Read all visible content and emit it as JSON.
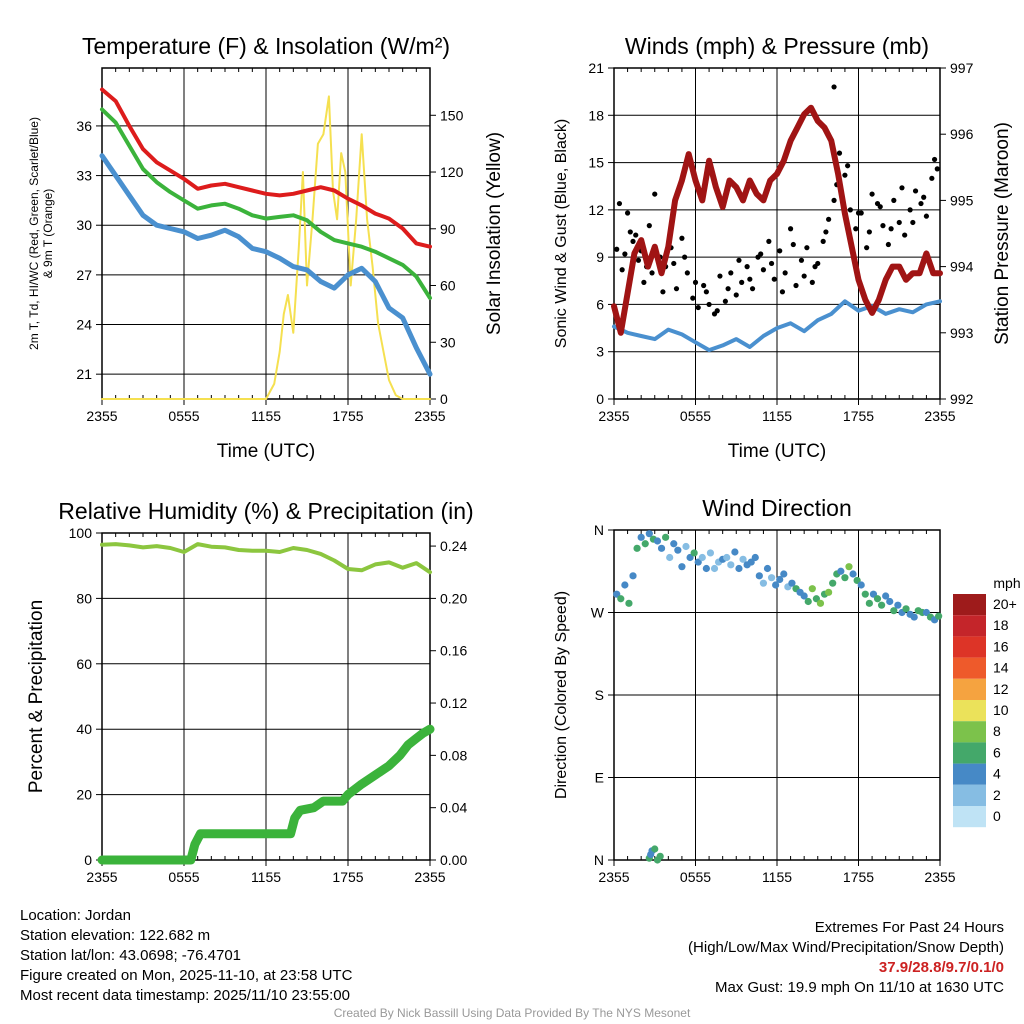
{
  "colors": {
    "red": "#dd1c1c",
    "green": "#3bb33b",
    "blue": "#4a90cf",
    "yellow": "#f5e050",
    "maroon": "#a01414",
    "black": "#000000",
    "lightgreen": "#8cc63f"
  },
  "time_ticks": [
    "2355",
    "0555",
    "1155",
    "1755",
    "2355"
  ],
  "chart_data": [
    {
      "id": "temp",
      "type": "line",
      "title": "Temperature (F) & Insolation (W/m²)",
      "xlabel": "Time (UTC)",
      "ylabel": "2m T, Td, HI/WC (Red, Green, Scarlet/Blue) & 9m T (Orange)",
      "y2label": "Solar Insolation (Yellow)",
      "xlim": [
        0,
        24
      ],
      "ylim": [
        19.5,
        39.5
      ],
      "y2lim": [
        0,
        175
      ],
      "yticks": [
        21,
        24,
        27,
        30,
        33,
        36
      ],
      "y2ticks": [
        0,
        30,
        60,
        90,
        120,
        150
      ],
      "series": [
        {
          "name": "2m T",
          "color": "red",
          "axis": "left",
          "width": 4,
          "x": [
            0,
            1,
            2,
            3,
            4,
            5,
            6,
            7,
            8,
            9,
            10,
            11,
            12,
            13,
            14,
            15,
            16,
            17,
            18,
            19,
            20,
            21,
            22,
            23,
            24
          ],
          "y": [
            38.2,
            37.5,
            36.0,
            34.6,
            33.8,
            33.3,
            32.8,
            32.2,
            32.4,
            32.5,
            32.3,
            32.1,
            31.9,
            31.8,
            31.9,
            32.1,
            32.3,
            32.1,
            31.6,
            31.2,
            30.7,
            30.4,
            29.8,
            28.9,
            28.7
          ]
        },
        {
          "name": "Td",
          "color": "green",
          "axis": "left",
          "width": 4,
          "x": [
            0,
            1,
            2,
            3,
            4,
            5,
            6,
            7,
            8,
            9,
            10,
            11,
            12,
            13,
            14,
            15,
            16,
            17,
            18,
            19,
            20,
            21,
            22,
            23,
            24
          ],
          "y": [
            37.0,
            36.2,
            34.8,
            33.4,
            32.6,
            32.0,
            31.5,
            31.0,
            31.2,
            31.3,
            31.0,
            30.6,
            30.4,
            30.5,
            30.6,
            30.3,
            29.6,
            29.1,
            28.9,
            28.7,
            28.4,
            28.0,
            27.6,
            26.9,
            25.6
          ]
        },
        {
          "name": "HI/WC",
          "color": "blue",
          "axis": "left",
          "width": 5,
          "x": [
            0,
            1,
            2,
            3,
            4,
            5,
            6,
            7,
            8,
            9,
            10,
            11,
            12,
            13,
            14,
            15,
            16,
            17,
            18,
            19,
            20,
            21,
            22,
            23,
            24
          ],
          "y": [
            34.2,
            33.0,
            31.8,
            30.6,
            30.0,
            29.8,
            29.6,
            29.2,
            29.4,
            29.7,
            29.3,
            28.6,
            28.4,
            28.0,
            27.5,
            27.3,
            26.6,
            26.2,
            27.0,
            27.4,
            26.6,
            25.0,
            24.4,
            22.6,
            21.0
          ]
        },
        {
          "name": "Solar Insolation",
          "color": "yellow",
          "axis": "right",
          "width": 2,
          "x": [
            0,
            12,
            12.6,
            13.0,
            13.3,
            13.6,
            14.0,
            14.4,
            14.7,
            15.0,
            15.4,
            15.8,
            16.2,
            16.6,
            16.9,
            17.2,
            17.5,
            17.8,
            18.2,
            18.6,
            19.0,
            19.4,
            19.8,
            20.2,
            20.6,
            21.0,
            21.5,
            22.0,
            24
          ],
          "y": [
            0,
            0,
            8,
            25,
            45,
            55,
            35,
            80,
            120,
            60,
            95,
            135,
            140,
            160,
            110,
            95,
            130,
            120,
            60,
            95,
            140,
            95,
            70,
            40,
            25,
            10,
            2,
            0,
            0
          ]
        }
      ]
    },
    {
      "id": "winds",
      "type": "line",
      "title": "Winds (mph) & Pressure (mb)",
      "xlabel": "Time (UTC)",
      "ylabel": "Sonic Wind & Gust (Blue, Black)",
      "y2label": "Station Pressure (Maroon)",
      "xlim": [
        0,
        24
      ],
      "ylim": [
        0,
        21
      ],
      "y2lim": [
        992,
        997
      ],
      "yticks": [
        0,
        3,
        6,
        9,
        12,
        15,
        18,
        21
      ],
      "y2ticks": [
        992,
        993,
        994,
        995,
        996,
        997
      ],
      "series": [
        {
          "name": "Sonic Wind",
          "color": "blue",
          "axis": "left",
          "width": 4,
          "x": [
            0,
            1,
            2,
            3,
            4,
            5,
            6,
            7,
            8,
            9,
            10,
            11,
            12,
            13,
            14,
            15,
            16,
            17,
            18,
            19,
            20,
            21,
            22,
            23,
            24
          ],
          "y": [
            4.6,
            4.2,
            4.0,
            3.8,
            4.4,
            4.1,
            3.6,
            3.1,
            3.4,
            3.8,
            3.3,
            4.0,
            4.5,
            4.8,
            4.3,
            5.0,
            5.4,
            6.2,
            5.6,
            5.9,
            5.4,
            5.7,
            5.5,
            6.0,
            6.2
          ]
        },
        {
          "name": "Station Pressure",
          "color": "maroon",
          "axis": "right",
          "width": 6,
          "x": [
            0,
            0.5,
            1,
            1.5,
            2,
            2.5,
            3,
            3.5,
            4,
            4.5,
            5,
            5.5,
            6,
            6.5,
            7,
            7.5,
            8,
            8.5,
            9,
            9.5,
            10,
            10.5,
            11,
            11.5,
            12,
            12.5,
            13,
            13.5,
            14,
            14.5,
            15,
            15.5,
            16,
            16.5,
            17,
            17.5,
            18,
            18.5,
            19,
            19.5,
            20,
            20.5,
            21,
            21.5,
            22,
            22.5,
            23,
            23.5,
            24
          ],
          "y": [
            993.4,
            993.0,
            993.6,
            994.2,
            994.4,
            994.0,
            994.3,
            993.9,
            994.3,
            995.0,
            995.3,
            995.7,
            995.3,
            995.0,
            995.6,
            995.2,
            994.9,
            995.3,
            995.2,
            995.0,
            995.3,
            995.1,
            995.0,
            995.3,
            995.4,
            995.6,
            995.9,
            996.1,
            996.3,
            996.4,
            996.2,
            996.1,
            995.9,
            995.4,
            994.8,
            994.3,
            993.8,
            993.5,
            993.3,
            993.5,
            993.8,
            994.0,
            994.0,
            993.8,
            993.9,
            993.9,
            994.2,
            993.9,
            993.9
          ]
        }
      ],
      "scatter": {
        "name": "Gust",
        "color": "black",
        "axis": "left",
        "x": [
          0.2,
          0.6,
          1.0,
          1.4,
          1.8,
          2.2,
          2.6,
          3.0,
          3.4,
          3.8,
          4.2,
          4.6,
          5.0,
          5.4,
          5.8,
          6.2,
          6.6,
          7.0,
          7.4,
          7.8,
          8.2,
          8.6,
          9.0,
          9.4,
          9.8,
          10.2,
          10.6,
          11.0,
          11.4,
          11.8,
          12.2,
          12.6,
          13.0,
          13.4,
          13.8,
          14.2,
          14.6,
          15.0,
          15.4,
          15.8,
          16.2,
          16.6,
          17.0,
          17.4,
          17.8,
          18.2,
          18.6,
          19.0,
          19.4,
          19.8,
          20.2,
          20.6,
          21.0,
          21.4,
          21.8,
          22.2,
          22.6,
          23.0,
          23.4,
          23.8,
          0.4,
          1.2,
          2.0,
          2.8,
          3.6,
          4.4,
          5.2,
          6.0,
          6.8,
          7.6,
          8.4,
          9.2,
          10.0,
          10.8,
          11.6,
          12.4,
          13.2,
          14.0,
          14.8,
          15.6,
          16.4,
          17.2,
          18.0,
          18.8,
          19.6,
          20.4,
          21.2,
          22.0,
          22.8,
          23.6,
          16.2,
          2.4,
          0.8,
          1.6
        ],
        "y": [
          9.5,
          8.2,
          11.8,
          10.0,
          8.8,
          7.4,
          11.0,
          13.0,
          9.0,
          8.4,
          9.6,
          7.0,
          10.2,
          8.0,
          6.4,
          5.8,
          7.2,
          6.0,
          5.4,
          7.8,
          6.2,
          8.0,
          6.6,
          7.4,
          8.4,
          7.0,
          9.0,
          8.2,
          10.0,
          7.6,
          9.4,
          8.0,
          10.8,
          7.2,
          8.8,
          9.6,
          7.4,
          8.6,
          10.0,
          11.4,
          12.6,
          15.6,
          14.2,
          12.0,
          10.8,
          11.8,
          9.6,
          13.0,
          12.4,
          11.0,
          9.8,
          12.6,
          11.2,
          10.4,
          12.0,
          13.2,
          12.4,
          11.6,
          14.0,
          14.6,
          12.4,
          10.6,
          9.4,
          8.0,
          6.8,
          8.6,
          9.0,
          7.4,
          6.8,
          5.6,
          7.0,
          8.8,
          7.6,
          9.2,
          8.6,
          6.8,
          9.8,
          7.8,
          8.4,
          10.6,
          13.6,
          14.8,
          11.8,
          10.6,
          12.2,
          10.8,
          13.4,
          11.2,
          12.8,
          15.2,
          19.8,
          8.4,
          9.2,
          10.4
        ]
      }
    },
    {
      "id": "rh",
      "type": "line",
      "title": "Relative Humidity (%) & Precipitation (in)",
      "xlabel": "",
      "ylabel": "Percent & Precipitation",
      "xlim": [
        0,
        24
      ],
      "ylim": [
        0,
        100
      ],
      "y2lim": [
        0,
        0.25
      ],
      "yticks": [
        0,
        20,
        40,
        60,
        80,
        100
      ],
      "y2ticks": [
        "0.00",
        "0.04",
        "0.08",
        "0.12",
        "0.16",
        "0.20",
        "0.24"
      ],
      "series": [
        {
          "name": "Relative Humidity",
          "color": "lightgreen",
          "axis": "left",
          "width": 4,
          "x": [
            0,
            1,
            2,
            3,
            4,
            5,
            6,
            7,
            8,
            9,
            10,
            11,
            12,
            13,
            14,
            15,
            16,
            17,
            18,
            19,
            20,
            21,
            22,
            23,
            24
          ],
          "y": [
            96.4,
            96.6,
            96.2,
            95.6,
            96.0,
            95.4,
            94.2,
            96.6,
            95.8,
            95.6,
            94.8,
            94.6,
            94.6,
            94.2,
            95.4,
            94.8,
            93.6,
            91.6,
            89.0,
            88.6,
            90.4,
            91.0,
            89.4,
            90.8,
            88.0
          ]
        },
        {
          "name": "Precipitation",
          "color": "green",
          "axis": "right",
          "width": 9,
          "x": [
            0,
            6.5,
            6.8,
            7.2,
            13.8,
            14.1,
            14.5,
            15.5,
            16.2,
            17.6,
            18.0,
            19.0,
            20.0,
            21.0,
            21.8,
            22.4,
            23.0,
            23.5,
            24
          ],
          "y": [
            0,
            0,
            0.012,
            0.02,
            0.02,
            0.032,
            0.038,
            0.04,
            0.045,
            0.045,
            0.05,
            0.058,
            0.065,
            0.072,
            0.08,
            0.088,
            0.093,
            0.097,
            0.1
          ]
        }
      ]
    },
    {
      "id": "wdir",
      "type": "scatter",
      "title": "Wind Direction",
      "xlabel": "",
      "ylabel": "Direction (Colored By Speed)",
      "xlim": [
        0,
        24
      ],
      "ylim": [
        0,
        360
      ],
      "yticks": [
        0,
        90,
        180,
        270,
        360
      ],
      "ytick_labels": [
        "N",
        "E",
        "S",
        "W",
        "N"
      ],
      "legend_title": "mph",
      "legend_labels": [
        "20+",
        "18",
        "16",
        "14",
        "12",
        "10",
        "8",
        "6",
        "4",
        "2",
        "0"
      ],
      "legend_colors": [
        "#9e1b1b",
        "#c4252a",
        "#dd3427",
        "#ee5a2b",
        "#f5a340",
        "#ebe25a",
        "#7cc24b",
        "#44a86a",
        "#4689c6",
        "#86bde3",
        "#bfe3f5"
      ],
      "points_x": [
        0.2,
        0.5,
        0.8,
        1.1,
        1.4,
        1.7,
        2.0,
        2.3,
        2.6,
        2.9,
        3.2,
        3.5,
        3.8,
        4.1,
        4.4,
        4.7,
        5.0,
        5.3,
        5.6,
        5.9,
        6.2,
        6.5,
        6.8,
        7.1,
        7.4,
        7.7,
        8.0,
        8.3,
        8.6,
        8.9,
        9.2,
        9.5,
        9.8,
        10.1,
        10.4,
        10.7,
        11.0,
        11.3,
        11.6,
        11.9,
        12.2,
        12.5,
        12.8,
        13.1,
        13.4,
        13.7,
        14.0,
        14.3,
        14.6,
        14.9,
        15.2,
        15.5,
        15.8,
        16.1,
        16.4,
        16.7,
        17.0,
        17.3,
        17.6,
        17.9,
        18.2,
        18.5,
        18.8,
        19.1,
        19.4,
        19.7,
        20.0,
        20.3,
        20.6,
        20.9,
        21.2,
        21.5,
        21.8,
        22.1,
        22.4,
        22.7,
        23.0,
        23.3,
        23.6,
        23.9,
        2.6,
        2.8,
        3.0,
        3.2,
        2.7,
        3.4
      ],
      "points_y": [
        290,
        285,
        300,
        280,
        310,
        340,
        352,
        345,
        356,
        350,
        348,
        340,
        352,
        330,
        345,
        338,
        320,
        342,
        330,
        335,
        325,
        330,
        318,
        335,
        318,
        325,
        328,
        330,
        322,
        336,
        318,
        328,
        322,
        325,
        330,
        310,
        302,
        318,
        308,
        300,
        306,
        312,
        298,
        302,
        296,
        292,
        288,
        282,
        296,
        285,
        280,
        290,
        292,
        302,
        312,
        315,
        308,
        320,
        312,
        305,
        300,
        290,
        280,
        290,
        285,
        278,
        288,
        282,
        272,
        278,
        270,
        274,
        268,
        265,
        272,
        270,
        270,
        265,
        262,
        266,
        2,
        10,
        12,
        0,
        6,
        4
      ],
      "points_speed": [
        4,
        6,
        4,
        6,
        4,
        6,
        4,
        5,
        4,
        6,
        4,
        4,
        6,
        2,
        4,
        4,
        4,
        2,
        4,
        6,
        4,
        2,
        4,
        2,
        2,
        2,
        4,
        2,
        2,
        4,
        4,
        2,
        4,
        4,
        4,
        4,
        2,
        4,
        2,
        4,
        4,
        4,
        2,
        4,
        6,
        4,
        4,
        6,
        8,
        6,
        8,
        6,
        8,
        6,
        6,
        4,
        6,
        8,
        4,
        6,
        4,
        6,
        6,
        4,
        6,
        6,
        4,
        4,
        6,
        4,
        4,
        6,
        4,
        4,
        6,
        6,
        4,
        6,
        4,
        6,
        6,
        4,
        6,
        6,
        4,
        6
      ]
    }
  ],
  "info": {
    "location": "Location: Jordan",
    "elevation": "Station elevation: 122.682 m",
    "latlon": "Station lat/lon: 43.0698; -76.4701",
    "created": "Figure created on Mon, 2025-11-10, at 23:58 UTC",
    "recent": "Most recent data timestamp: 2025/11/10 23:55:00"
  },
  "extremes": {
    "title": "Extremes For Past 24 Hours",
    "subtitle": "(High/Low/Max Wind/Precipitation/Snow Depth)",
    "values": "37.9/28.8/9.7/0.1/0",
    "gust": "Max Gust: 19.9 mph On 11/10 at 1630 UTC"
  },
  "credit": "Created By Nick Bassill Using Data Provided By The NYS Mesonet"
}
